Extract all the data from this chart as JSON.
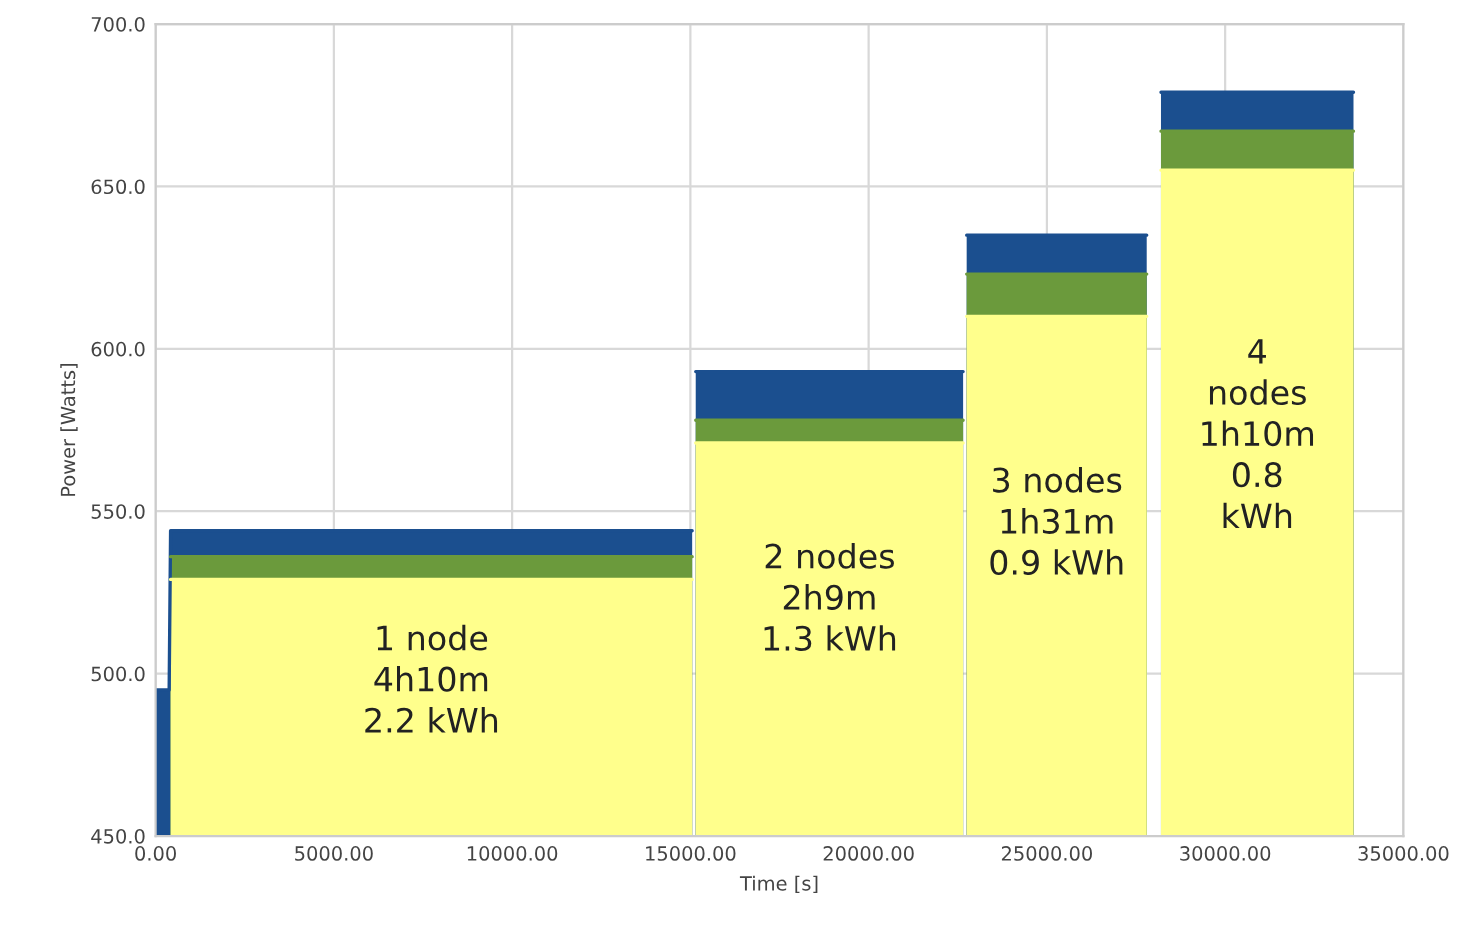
{
  "chart_data": {
    "type": "area",
    "xlabel": "Time [s]",
    "ylabel": "Power [Watts]",
    "series": [
      {
        "color": "#1b4f8f",
        "x": [
          0,
          380,
          420,
          15050,
          15060,
          15150,
          22650,
          22660,
          22750,
          27800,
          27810,
          28200,
          33600
        ],
        "values": [
          495,
          495,
          544,
          544,
          null,
          593,
          593,
          null,
          635,
          635,
          null,
          679,
          679
        ]
      },
      {
        "color": "#6b9a3c",
        "x": [
          420,
          15050,
          15060,
          15150,
          22650,
          22660,
          22750,
          27800,
          27810,
          28200,
          33600
        ],
        "values": [
          536,
          536,
          null,
          578,
          578,
          null,
          623,
          623,
          null,
          667,
          667
        ]
      },
      {
        "color": "#ffff8c",
        "x": [
          420,
          15050,
          15060,
          15150,
          22650,
          22660,
          22750,
          27800,
          27810,
          28200,
          33600
        ],
        "values": [
          529,
          529,
          null,
          571,
          571,
          null,
          610,
          610,
          null,
          655,
          655
        ]
      }
    ],
    "xlim": [
      0,
      35000
    ],
    "xticks": [
      {
        "value": 0,
        "label": "0.00"
      },
      {
        "value": 5000,
        "label": "5000.00"
      },
      {
        "value": 10000,
        "label": "10000.00"
      },
      {
        "value": 15000,
        "label": "15000.00"
      },
      {
        "value": 20000,
        "label": "20000.00"
      },
      {
        "value": 25000,
        "label": "25000.00"
      },
      {
        "value": 30000,
        "label": "30000.00"
      },
      {
        "value": 35000,
        "label": "35000.00"
      }
    ],
    "ylim": [
      450,
      700
    ],
    "yticks": [
      {
        "value": 450,
        "label": "450.0"
      },
      {
        "value": 500,
        "label": "500.0"
      },
      {
        "value": 550,
        "label": "550.0"
      },
      {
        "value": 600,
        "label": "600.0"
      },
      {
        "value": 650,
        "label": "650.0"
      },
      {
        "value": 700,
        "label": "700.0"
      }
    ],
    "grid": true,
    "annotations": [
      "1 node\n4h10m\n2.2 kWh",
      "2 nodes\n2h9m\n1.3 kWh",
      "3 nodes\n1h31m\n0.9 kWh",
      "4\nnodes\n1h10m\n0.8\nkWh"
    ]
  }
}
